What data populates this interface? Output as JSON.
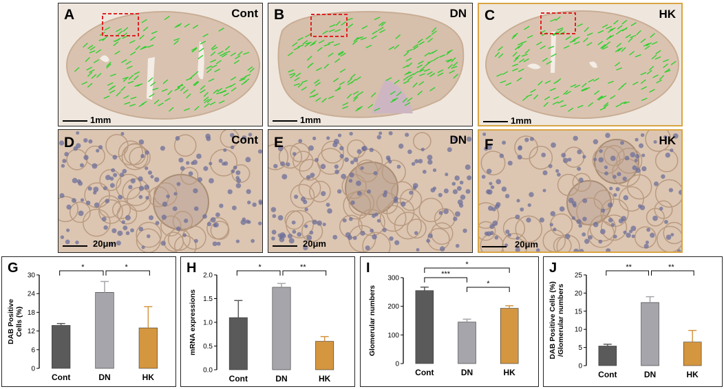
{
  "top_row": [
    {
      "letter": "A",
      "group": "Cont",
      "scale": "1mm",
      "border": "#222222"
    },
    {
      "letter": "B",
      "group": "DN",
      "scale": "1mm",
      "border": "#222222"
    },
    {
      "letter": "C",
      "group": "HK",
      "scale": "1mm",
      "border": "#d9a441"
    }
  ],
  "mid_row": [
    {
      "letter": "D",
      "group": "Cont",
      "scale": "20μm",
      "border": "#222222"
    },
    {
      "letter": "E",
      "group": "DN",
      "scale": "20μm",
      "border": "#222222"
    },
    {
      "letter": "F",
      "group": "HK",
      "scale": "20μm",
      "border": "#d9a441"
    }
  ],
  "colors": {
    "cont": "#5a5a5a",
    "dn": "#a5a5ab",
    "hk": "#d4963f",
    "marker": "#2fd02f",
    "roi": "#e02020"
  },
  "chart_data": [
    {
      "letter": "G",
      "type": "bar",
      "categories": [
        "Cont",
        "DN",
        "HK"
      ],
      "values": [
        13.8,
        24.4,
        13.0
      ],
      "errors": [
        0.6,
        3.5,
        6.8
      ],
      "ylabel": [
        "DAB Positive",
        "Cells (%)"
      ],
      "ylim": [
        0,
        30
      ],
      "yticks": [
        0,
        6,
        12,
        18,
        24,
        30
      ],
      "sig": [
        {
          "from": 0,
          "to": 1,
          "label": "*"
        },
        {
          "from": 1,
          "to": 2,
          "label": "*"
        }
      ]
    },
    {
      "letter": "H",
      "type": "bar",
      "categories": [
        "Cont",
        "DN",
        "HK"
      ],
      "values": [
        1.1,
        1.74,
        0.6
      ],
      "errors": [
        0.36,
        0.08,
        0.1
      ],
      "ylabel": [
        "mRNA expressions"
      ],
      "ylim": [
        0,
        2
      ],
      "yticks": [
        "0.0",
        "0.5",
        "1.0",
        "1.5",
        "2.0"
      ],
      "sig": [
        {
          "from": 0,
          "to": 1,
          "label": "*"
        },
        {
          "from": 1,
          "to": 2,
          "label": "**"
        }
      ]
    },
    {
      "letter": "I",
      "type": "bar",
      "categories": [
        "Cont",
        "DN",
        "HK"
      ],
      "values": [
        255,
        145,
        193
      ],
      "errors": [
        12,
        10,
        9
      ],
      "ylabel": [
        "Glomerular numbers"
      ],
      "ylim": [
        0,
        300
      ],
      "yticks": [
        0,
        100,
        200,
        300
      ],
      "sig": [
        {
          "from": 0,
          "to": 2,
          "label": "*"
        },
        {
          "from": 0,
          "to": 1,
          "label": "***"
        },
        {
          "from": 1,
          "to": 2,
          "label": "*"
        }
      ]
    },
    {
      "letter": "J",
      "type": "bar",
      "categories": [
        "Cont",
        "DN",
        "HK"
      ],
      "values": [
        5.4,
        17.4,
        6.5
      ],
      "errors": [
        0.5,
        1.6,
        3.2
      ],
      "ylabel": [
        "DAB Positive Cells (%)",
        "/Glomerular numbers"
      ],
      "ylim": [
        0,
        25
      ],
      "yticks": [
        0,
        5,
        10,
        15,
        20,
        25
      ],
      "sig": [
        {
          "from": 0,
          "to": 1,
          "label": "**"
        },
        {
          "from": 1,
          "to": 2,
          "label": "**"
        }
      ]
    }
  ]
}
